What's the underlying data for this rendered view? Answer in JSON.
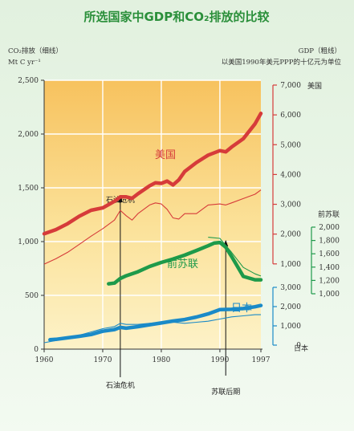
{
  "chart_data": {
    "type": "line",
    "title": "所选国家中GDP和CO₂排放的比较",
    "left_axis": {
      "label_line1": "CO₂排放（细线）",
      "label_line2": "Mt C yr⁻¹",
      "range": [
        0,
        2500
      ],
      "ticks": [
        0,
        500,
        1000,
        1500,
        2000,
        2500
      ],
      "tick_labels": [
        "0",
        "500",
        "1,000",
        "1,500",
        "2,000",
        "2,500"
      ]
    },
    "gdp_header": {
      "label_line1": "GDP（粗线）",
      "label_line2": "以美国1990年美元PPP的十亿元为单位"
    },
    "x_axis": {
      "range": [
        1960,
        1997
      ],
      "ticks": [
        1960,
        1970,
        1980,
        1990,
        1997
      ],
      "tick_labels": [
        "1960",
        "1970",
        "1980",
        "1990",
        "1997"
      ]
    },
    "gdp_axes": [
      {
        "name": "美国",
        "color": "#d63b3a",
        "range": [
          1000,
          7000
        ],
        "ticks": [
          1000,
          2000,
          3000,
          4000,
          5000,
          6000,
          7000
        ],
        "tick_labels": [
          "1,000",
          "2,000",
          "3,000",
          "4,000",
          "5,000",
          "6,000",
          "7,000"
        ]
      },
      {
        "name": "前苏联",
        "color": "#1e9a4a",
        "range": [
          1000,
          2000
        ],
        "ticks": [
          1000,
          1200,
          1400,
          1600,
          1800,
          2000
        ],
        "tick_labels": [
          "1,000",
          "1,200",
          "1,400",
          "1,600",
          "1,800",
          "2,000"
        ]
      },
      {
        "name": "日本",
        "color": "#1a8ac8",
        "range": [
          0,
          3000
        ],
        "ticks": [
          0,
          1000,
          2000,
          3000
        ],
        "tick_labels": [
          "0",
          "1,000",
          "2,000",
          "3,000"
        ]
      }
    ],
    "series": [
      {
        "name": "美国",
        "color": "#d63b3a",
        "co2_x": [
          1960,
          1962,
          1964,
          1966,
          1968,
          1970,
          1972,
          1973,
          1974,
          1975,
          1976,
          1978,
          1979,
          1980,
          1981,
          1982,
          1983,
          1984,
          1986,
          1988,
          1990,
          1991,
          1992,
          1994,
          1996,
          1997
        ],
        "co2_y": [
          790,
          840,
          900,
          975,
          1050,
          1120,
          1200,
          1290,
          1240,
          1200,
          1260,
          1340,
          1360,
          1350,
          1300,
          1220,
          1210,
          1260,
          1260,
          1340,
          1350,
          1340,
          1360,
          1400,
          1440,
          1480
        ],
        "gdp_x": [
          1960,
          1962,
          1964,
          1966,
          1968,
          1970,
          1972,
          1973,
          1974,
          1975,
          1976,
          1978,
          1979,
          1980,
          1981,
          1982,
          1983,
          1984,
          1986,
          1988,
          1990,
          1991,
          1992,
          1994,
          1996,
          1997
        ],
        "gdp_y": [
          2010,
          2150,
          2350,
          2600,
          2800,
          2880,
          3100,
          3250,
          3250,
          3200,
          3350,
          3620,
          3720,
          3700,
          3780,
          3650,
          3820,
          4100,
          4400,
          4650,
          4800,
          4760,
          4920,
          5200,
          5700,
          6050
        ]
      },
      {
        "name": "前苏联",
        "color": "#1e9a4a",
        "co2_x": [
          1988,
          1990,
          1992,
          1994,
          1996,
          1997
        ],
        "co2_y": [
          1040,
          1030,
          900,
          760,
          700,
          680
        ],
        "gdp_x": [
          1971,
          1972,
          1973,
          1974,
          1976,
          1978,
          1980,
          1982,
          1984,
          1986,
          1988,
          1989,
          1990,
          1991,
          1992,
          1994,
          1996,
          1997
        ],
        "gdp_y": [
          1150,
          1160,
          1230,
          1270,
          1330,
          1410,
          1470,
          1520,
          1580,
          1650,
          1720,
          1760,
          1770,
          1700,
          1560,
          1260,
          1210,
          1210
        ]
      },
      {
        "name": "日本",
        "color": "#1a8ac8",
        "co2_x": [
          1960,
          1962,
          1964,
          1966,
          1968,
          1970,
          1972,
          1973,
          1974,
          1976,
          1978,
          1980,
          1982,
          1984,
          1986,
          1988,
          1990,
          1992,
          1994,
          1996,
          1997
        ],
        "co2_y": [
          60,
          80,
          100,
          130,
          160,
          190,
          210,
          240,
          230,
          230,
          240,
          250,
          250,
          240,
          250,
          260,
          280,
          300,
          310,
          320,
          320
        ],
        "gdp_x": [
          1961,
          1962,
          1964,
          1966,
          1968,
          1970,
          1972,
          1973,
          1974,
          1976,
          1978,
          1980,
          1982,
          1984,
          1986,
          1988,
          1990,
          1992,
          1994,
          1996,
          1997
        ],
        "gdp_y": [
          280,
          300,
          380,
          460,
          550,
          720,
          810,
          920,
          880,
          960,
          1060,
          1150,
          1250,
          1330,
          1460,
          1620,
          1840,
          1860,
          1900,
          1990,
          2060
        ]
      }
    ],
    "series_labels": [
      "美国",
      "前苏联",
      "日本"
    ],
    "annotations": [
      {
        "text": "石油危机",
        "x": 1973
      },
      {
        "text": "石油危机",
        "x": 1973
      },
      {
        "text": "苏联后期",
        "x": 1991
      }
    ],
    "grid": true
  }
}
